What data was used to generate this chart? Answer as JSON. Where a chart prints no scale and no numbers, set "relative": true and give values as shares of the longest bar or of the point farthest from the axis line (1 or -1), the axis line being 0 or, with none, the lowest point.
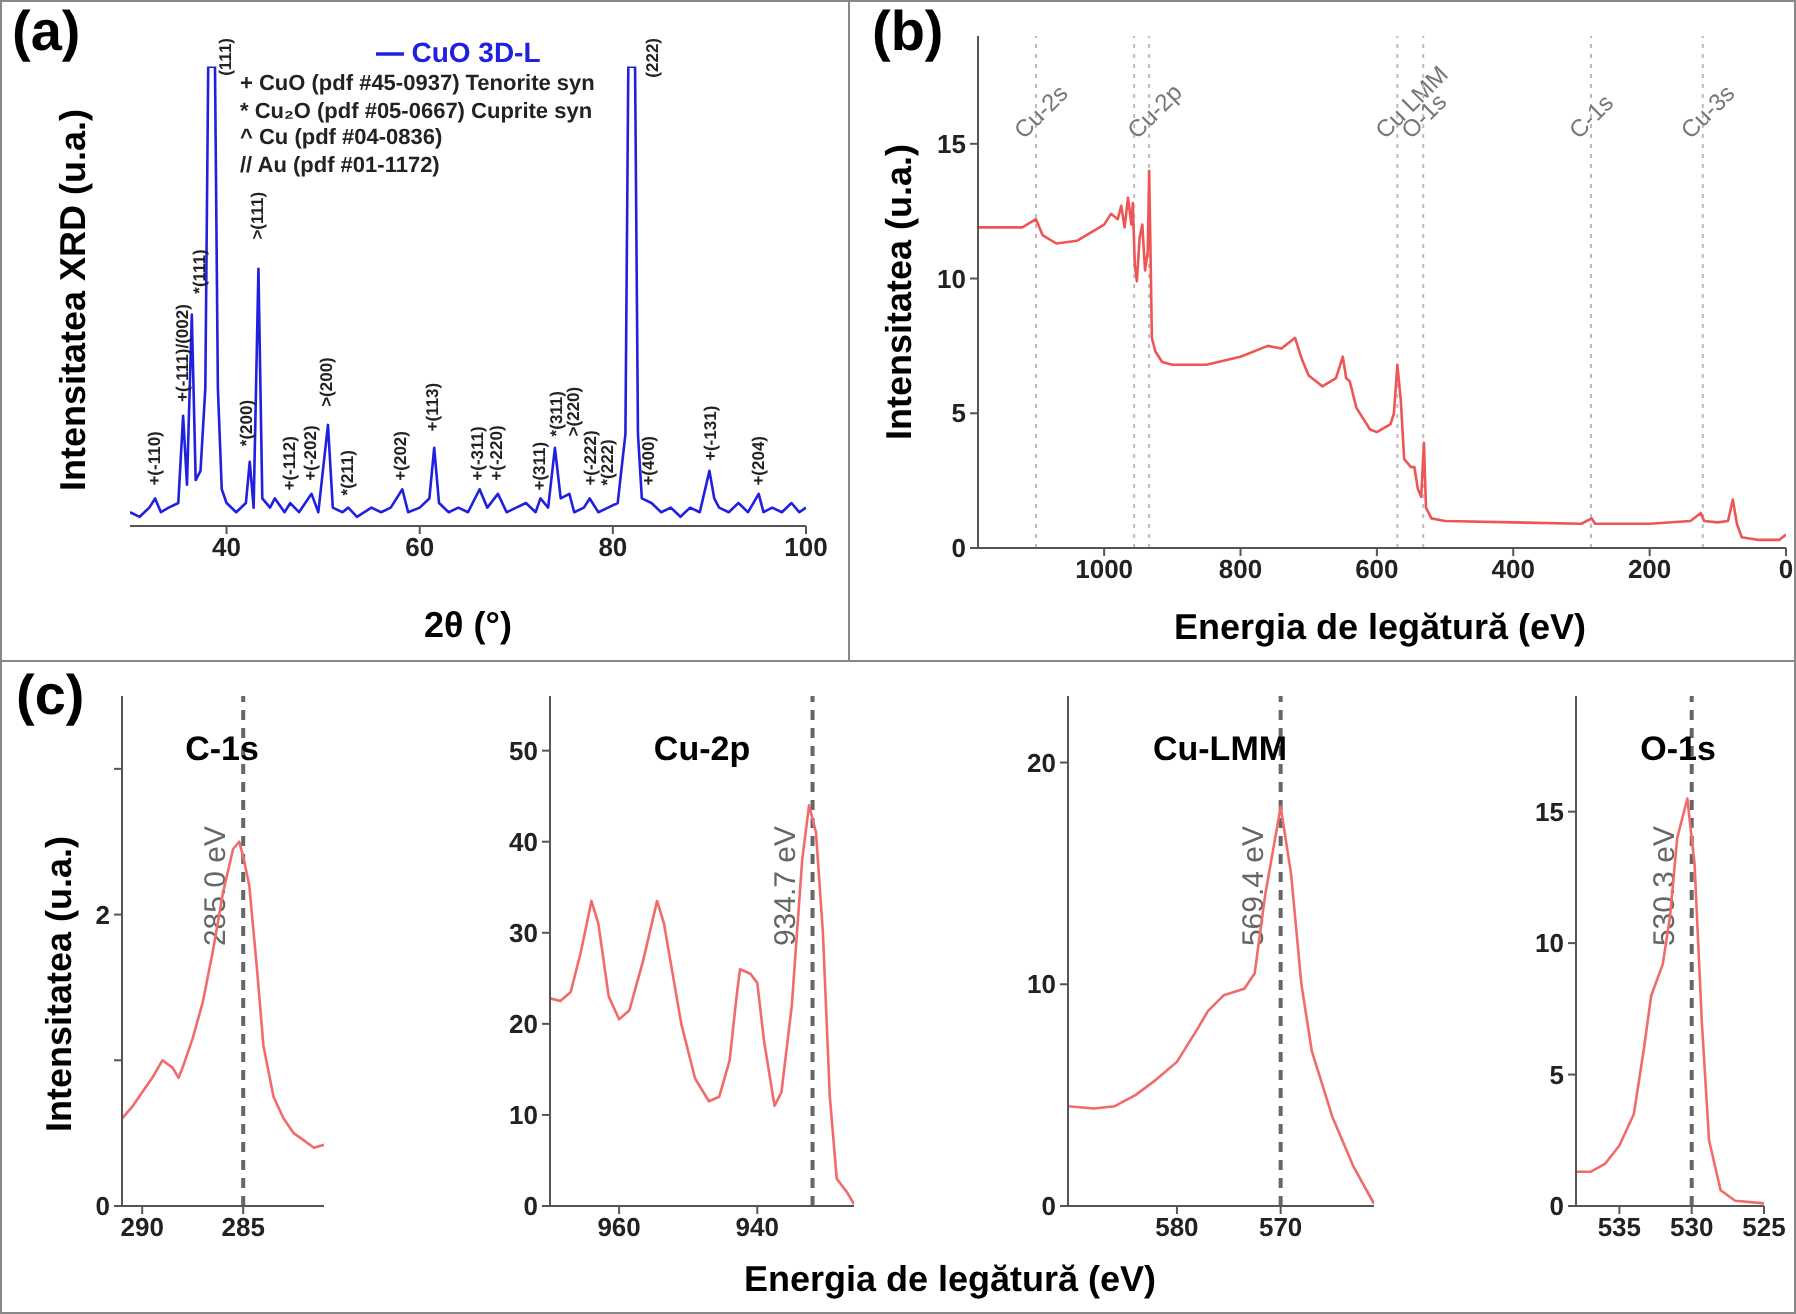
{
  "chart_data": [
    {
      "type": "line",
      "xlabel": "2θ (°)",
      "ylabel": "Intensitatea XRD (u.a.)",
      "relative": true,
      "xlim": [
        30,
        100
      ],
      "xticks": [
        40,
        60,
        80,
        100
      ],
      "legend": "top",
      "annotations": [
        "(a)",
        "+ CuO (pdf #45-0937) Tenorite syn",
        "* Cu₂O (pdf #05-0667) Cuprite syn",
        "^ Cu (pdf #04-0836)",
        "// Au (pdf #01-1172)",
        {
          "text": "+(-110)",
          "x": 32.6,
          "y": 0.07
        },
        {
          "text": "+(-111)/(002)",
          "x": 35.5,
          "y": 0.24
        },
        {
          "text": "*(111)",
          "x": 36.4,
          "y": 0.46
        },
        {
          "text": "(111)",
          "x": 38.1,
          "y": 1
        },
        {
          "text": "*(200)",
          "x": 42.2,
          "y": 0.15
        },
        {
          "text": ">(111)",
          "x": 43.3,
          "y": 0.57
        },
        {
          "text": "+(-112)",
          "x": 46.6,
          "y": 0.06
        },
        {
          "text": "+(-202)",
          "x": 48.8,
          "y": 0.08
        },
        {
          "text": ">(200)",
          "x": 50.5,
          "y": 0.23
        },
        {
          "text": "*(211)",
          "x": 52.6,
          "y": 0.05
        },
        {
          "text": "+(202)",
          "x": 58.1,
          "y": 0.08
        },
        {
          "text": "+(113)",
          "x": 61.4,
          "y": 0.18
        },
        {
          "text": "+(-311)",
          "x": 66.1,
          "y": 0.08
        },
        {
          "text": "+(-220)",
          "x": 68.1,
          "y": 0.08
        },
        {
          "text": "+(311)",
          "x": 72.5,
          "y": 0.06
        },
        {
          "text": "*(311)",
          "x": 74,
          "y": 0.17
        },
        {
          "text": ">(220)",
          "x": 74,
          "y": 0.17
        },
        {
          "text": "+(-222)",
          "x": 75.5,
          "y": 0.07
        },
        {
          "text": "*(222)",
          "x": 77.7,
          "y": 0.07
        },
        {
          "text": "(222)",
          "x": 82.3,
          "y": 1
        },
        {
          "text": "+(400)",
          "x": 83.8,
          "y": 0.07
        },
        {
          "text": "+(-131)",
          "x": 90.2,
          "y": 0.12
        },
        {
          "text": "+(204)",
          "x": 95.2,
          "y": 0.07
        }
      ],
      "series": [
        {
          "name": "CuO 3D-L",
          "color": "#2020e0",
          "x": [
            30,
            31,
            32,
            32.6,
            33.2,
            34,
            35,
            35.5,
            35.9,
            36.4,
            36.8,
            37.3,
            37.8,
            38.1,
            38.8,
            39.1,
            39.5,
            40,
            41,
            42,
            42.4,
            42.8,
            43.3,
            43.7,
            44.5,
            45,
            46,
            46.6,
            47.5,
            48.8,
            49.5,
            50.5,
            51,
            52,
            52.6,
            53.5,
            55,
            56,
            57,
            58.2,
            58.8,
            60,
            61,
            61.5,
            62,
            63,
            64,
            65,
            66.2,
            67,
            68.1,
            69,
            70,
            71,
            72,
            72.5,
            73.3,
            74,
            74.6,
            75.5,
            76,
            77,
            77.6,
            78.5,
            79.5,
            80.5,
            81.3,
            81.6,
            82.3,
            82.6,
            83,
            84,
            85,
            86,
            87,
            88,
            89,
            90,
            90.5,
            91,
            92,
            93,
            94,
            95.1,
            95.6,
            96.5,
            97.5,
            98.5,
            99.3,
            100
          ],
          "values": [
            0.03,
            0.02,
            0.04,
            0.06,
            0.03,
            0.04,
            0.05,
            0.24,
            0.09,
            0.46,
            0.1,
            0.12,
            0.3,
            1,
            1,
            0.3,
            0.08,
            0.05,
            0.03,
            0.05,
            0.14,
            0.04,
            0.56,
            0.06,
            0.04,
            0.06,
            0.03,
            0.05,
            0.03,
            0.07,
            0.03,
            0.22,
            0.04,
            0.03,
            0.04,
            0.02,
            0.04,
            0.03,
            0.04,
            0.08,
            0.03,
            0.04,
            0.06,
            0.17,
            0.05,
            0.03,
            0.04,
            0.03,
            0.08,
            0.04,
            0.07,
            0.03,
            0.04,
            0.05,
            0.03,
            0.06,
            0.04,
            0.17,
            0.06,
            0.07,
            0.03,
            0.04,
            0.06,
            0.03,
            0.04,
            0.05,
            0.2,
            1,
            1,
            0.2,
            0.06,
            0.05,
            0.03,
            0.04,
            0.02,
            0.04,
            0.03,
            0.12,
            0.06,
            0.04,
            0.03,
            0.05,
            0.03,
            0.07,
            0.03,
            0.04,
            0.03,
            0.05,
            0.03,
            0.04
          ]
        }
      ]
    },
    {
      "type": "line",
      "xlabel": "Energia de legătură (eV)",
      "ylabel": "Intensitatea (u.a.)",
      "xlim": [
        1185,
        0
      ],
      "xticks": [
        1000,
        800,
        600,
        400,
        200,
        0
      ],
      "ylim": [
        0,
        19
      ],
      "yticks": [
        0,
        5,
        10,
        15
      ],
      "annotations": [
        "(b)"
      ],
      "ref_lines": [
        {
          "axis": "x",
          "value": 1100,
          "label": "Cu-2s",
          "color": "#bbbbbb",
          "line_style": "dotted"
        },
        {
          "axis": "x",
          "value": 956,
          "label": null,
          "color": "#bbbbbb",
          "line_style": "dotted"
        },
        {
          "axis": "x",
          "value": 934,
          "label": "Cu-2p",
          "color": "#bbbbbb",
          "line_style": "dotted"
        },
        {
          "axis": "x",
          "value": 570,
          "label": "Cu LMM",
          "color": "#bbbbbb",
          "line_style": "dotted"
        },
        {
          "axis": "x",
          "value": 532,
          "label": "O-1s",
          "color": "#bbbbbb",
          "line_style": "dotted"
        },
        {
          "axis": "x",
          "value": 286,
          "label": "C-1s",
          "color": "#bbbbbb",
          "line_style": "dotted"
        },
        {
          "axis": "x",
          "value": 122,
          "label": "Cu-3s",
          "color": "#bbbbbb",
          "line_style": "dotted"
        }
      ],
      "series": [
        {
          "color": "#f05555",
          "x": [
            1185,
            1120,
            1100,
            1090,
            1070,
            1040,
            1000,
            990,
            980,
            975,
            970,
            965,
            960,
            958,
            955,
            952,
            948,
            944,
            940,
            936,
            934,
            932,
            930,
            925,
            915,
            900,
            850,
            800,
            760,
            740,
            725,
            720,
            710,
            700,
            680,
            660,
            650,
            645,
            640,
            630,
            610,
            600,
            580,
            575,
            570,
            565,
            560,
            550,
            545,
            540,
            535,
            531,
            528,
            520,
            500,
            400,
            300,
            285,
            280,
            200,
            140,
            125,
            120,
            100,
            85,
            78,
            72,
            65,
            40,
            10,
            0
          ],
          "values": [
            11.9,
            11.9,
            12.2,
            11.6,
            11.3,
            11.4,
            12.0,
            12.4,
            12.2,
            12.7,
            11.9,
            13.0,
            12.0,
            12.8,
            10.5,
            9.9,
            11.5,
            12.0,
            10.3,
            11,
            14.0,
            11,
            7.8,
            7.3,
            6.9,
            6.8,
            6.8,
            7.1,
            7.5,
            7.4,
            7.7,
            7.8,
            7.0,
            6.4,
            6.0,
            6.3,
            7.1,
            6.3,
            6.2,
            5.2,
            4.4,
            4.3,
            4.6,
            5.0,
            6.8,
            5.5,
            3.3,
            3.0,
            3.0,
            2.2,
            1.9,
            3.9,
            1.5,
            1.1,
            1.0,
            0.95,
            0.9,
            1.1,
            0.9,
            0.9,
            1.0,
            1.3,
            1.0,
            0.95,
            1.0,
            1.8,
            0.9,
            0.4,
            0.3,
            0.3,
            0.5
          ]
        }
      ]
    },
    {
      "type": "line",
      "title": "C-1s",
      "ylabel": "Intensitatea (u.a.)",
      "xlim": [
        291,
        281
      ],
      "xticks": [
        290,
        285
      ],
      "ylim": [
        0,
        3.5
      ],
      "yticks": [
        0,
        {
          "value": 1,
          "label": null
        },
        2,
        {
          "value": 3,
          "label": null
        }
      ],
      "annotations": [
        "(c)"
      ],
      "ref_lines": [
        {
          "axis": "x",
          "value": 285,
          "label": "285.0 eV",
          "color": "#666666",
          "line_style": "dashed"
        }
      ],
      "series": [
        {
          "color": "#f26b6b",
          "x": [
            291,
            290.5,
            290,
            289.5,
            289,
            288.5,
            288.2,
            288,
            287.5,
            287,
            286.5,
            286,
            285.5,
            285.2,
            285,
            284.7,
            284.3,
            284,
            283.5,
            283,
            282.5,
            282,
            281.5,
            281
          ],
          "values": [
            0.6,
            0.68,
            0.78,
            0.88,
            1.0,
            0.95,
            0.88,
            0.95,
            1.15,
            1.4,
            1.75,
            2.15,
            2.45,
            2.5,
            2.4,
            2.2,
            1.6,
            1.1,
            0.75,
            0.6,
            0.5,
            0.45,
            0.4,
            0.42
          ]
        }
      ]
    },
    {
      "type": "line",
      "title": "Cu-2p",
      "xlabel": "Energia de legătură (eV)",
      "xlim": [
        970,
        926
      ],
      "xticks": [
        960,
        940
      ],
      "ylim": [
        0,
        56
      ],
      "yticks": [
        0,
        10,
        20,
        30,
        40,
        50
      ],
      "ref_lines": [
        {
          "axis": "x",
          "value": 932,
          "label": "934.7 eV",
          "color": "#666666",
          "line_style": "dashed"
        }
      ],
      "series": [
        {
          "color": "#f26b6b",
          "x": [
            970,
            968.5,
            967,
            965.5,
            964,
            963,
            961.5,
            960,
            958.5,
            956.5,
            954.5,
            953.5,
            951,
            949,
            947,
            945.5,
            944,
            943,
            942.5,
            941,
            940,
            939,
            937.5,
            936.5,
            935,
            933.5,
            932.5,
            931.5,
            930.5,
            929.5,
            928.5,
            927,
            926
          ],
          "values": [
            22.8,
            22.5,
            23.5,
            28,
            33.5,
            31,
            23,
            20.5,
            21.5,
            27,
            33.5,
            31,
            20,
            14,
            11.5,
            12,
            16,
            23,
            26,
            25.5,
            24.5,
            18,
            11,
            12.5,
            22,
            38,
            44,
            41,
            30,
            12,
            3,
            1.5,
            0.2
          ]
        }
      ]
    },
    {
      "type": "line",
      "title": "Cu-LMM",
      "xlim": [
        590.5,
        561
      ],
      "xticks": [
        580,
        570
      ],
      "ylim": [
        0,
        23
      ],
      "yticks": [
        0,
        10,
        20
      ],
      "ref_lines": [
        {
          "axis": "x",
          "value": 570,
          "label": "569.4 eV",
          "color": "#666666",
          "line_style": "dashed"
        }
      ],
      "series": [
        {
          "color": "#f26b6b",
          "x": [
            590.5,
            588,
            586,
            584,
            582,
            580,
            578,
            577,
            575.5,
            573.5,
            572.5,
            571.5,
            570,
            569,
            568,
            567,
            565,
            563,
            561
          ],
          "values": [
            4.5,
            4.4,
            4.5,
            5,
            5.7,
            6.5,
            8,
            8.8,
            9.5,
            9.8,
            10.5,
            14,
            18,
            15,
            10,
            7,
            4,
            1.8,
            0.1
          ]
        }
      ]
    },
    {
      "type": "line",
      "title": "O-1s",
      "xlim": [
        538,
        525
      ],
      "xticks": [
        535,
        530,
        525
      ],
      "ylim": [
        0,
        19.4
      ],
      "yticks": [
        0,
        5,
        10,
        15
      ],
      "ref_lines": [
        {
          "axis": "x",
          "value": 530,
          "label": "530.3 eV",
          "color": "#666666",
          "line_style": "dashed"
        }
      ],
      "series": [
        {
          "color": "#f26b6b",
          "x": [
            538,
            537,
            536,
            535,
            534,
            533.3,
            532.8,
            532,
            531.5,
            531,
            530.3,
            529.8,
            529.3,
            528.8,
            528,
            527,
            525
          ],
          "values": [
            1.3,
            1.3,
            1.6,
            2.3,
            3.5,
            6,
            8,
            9.2,
            11,
            14,
            15.5,
            13,
            7,
            2.5,
            0.6,
            0.2,
            0.1
          ]
        }
      ]
    }
  ]
}
